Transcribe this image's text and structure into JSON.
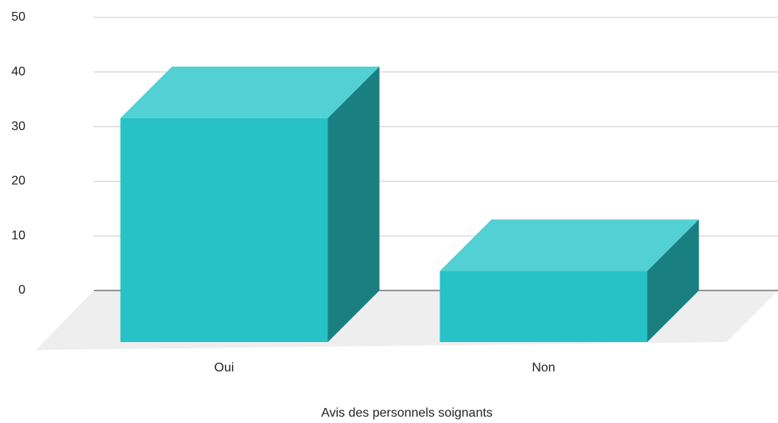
{
  "chart_data": {
    "type": "bar3d",
    "x_label": "Avis des personnels soignants",
    "categories": [
      "Oui",
      "Non"
    ],
    "values": [
      41,
      13
    ],
    "colors": {
      "front": "#26c2c6",
      "top": "#52d0d3",
      "side": "#1a7f80"
    },
    "ylim": [
      0,
      50
    ],
    "yticks": [
      0,
      10,
      20,
      30,
      40,
      50
    ],
    "grid": true
  }
}
